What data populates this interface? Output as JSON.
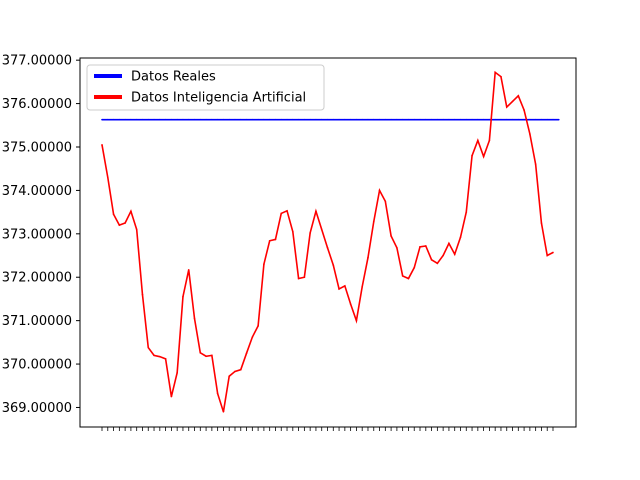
{
  "chart_data": {
    "type": "line",
    "title": "",
    "xlabel": "",
    "ylabel": "",
    "ylim": [
      368.55,
      377.05
    ],
    "yticks": [
      369,
      370,
      371,
      372,
      373,
      374,
      375,
      376,
      377
    ],
    "ytick_labels": [
      "369.00000",
      "370.00000",
      "371.00000",
      "372.00000",
      "373.00000",
      "374.00000",
      "375.00000",
      "376.00000",
      "377.00000"
    ],
    "legend_position": "top-left",
    "grid": false,
    "series": [
      {
        "name": "Datos Reales",
        "color": "#0000ff",
        "values": [
          375.63,
          375.63,
          375.63,
          375.63,
          375.63,
          375.63,
          375.63,
          375.63,
          375.63,
          375.63,
          375.63,
          375.63,
          375.63,
          375.63,
          375.63,
          375.63,
          375.63,
          375.63,
          375.63,
          375.63,
          375.63,
          375.63,
          375.63,
          375.63,
          375.63,
          375.63,
          375.63,
          375.63,
          375.63,
          375.63,
          375.63,
          375.63,
          375.63,
          375.63,
          375.63,
          375.63,
          375.63,
          375.63,
          375.63,
          375.63,
          375.63,
          375.63,
          375.63,
          375.63,
          375.63,
          375.63,
          375.63,
          375.63,
          375.63,
          375.63,
          375.63,
          375.63,
          375.63,
          375.63,
          375.63,
          375.63,
          375.63,
          375.63,
          375.63,
          375.63,
          375.63,
          375.63,
          375.63,
          375.63,
          375.63,
          375.63,
          375.63,
          375.63,
          375.63,
          375.63,
          375.63,
          375.63,
          375.63,
          375.63,
          375.63,
          375.63,
          375.63,
          375.63,
          375.63,
          375.63
        ]
      },
      {
        "name": "Datos Inteligencia Artificial",
        "color": "#ff0000",
        "values": [
          375.05,
          374.3,
          373.45,
          373.2,
          373.25,
          373.52,
          373.1,
          371.6,
          370.38,
          370.2,
          370.17,
          370.12,
          369.25,
          369.8,
          371.55,
          372.17,
          371.05,
          370.26,
          370.18,
          370.2,
          369.32,
          368.9,
          369.72,
          369.83,
          369.87,
          370.25,
          370.62,
          370.88,
          372.3,
          372.84,
          372.87,
          373.47,
          373.53,
          373.05,
          371.97,
          372.0,
          373.02,
          373.52,
          373.1,
          372.68,
          372.28,
          371.73,
          371.8,
          371.38,
          371.0,
          371.78,
          372.45,
          373.28,
          374.0,
          373.75,
          372.95,
          372.68,
          372.03,
          371.97,
          372.22,
          372.7,
          372.72,
          372.4,
          372.32,
          372.5,
          372.78,
          372.53,
          372.92,
          373.5,
          374.8,
          375.15,
          374.78,
          375.15,
          376.72,
          376.62,
          375.92,
          376.05,
          376.18,
          375.85,
          375.3,
          374.6,
          373.25,
          372.5,
          372.57
        ]
      }
    ]
  }
}
